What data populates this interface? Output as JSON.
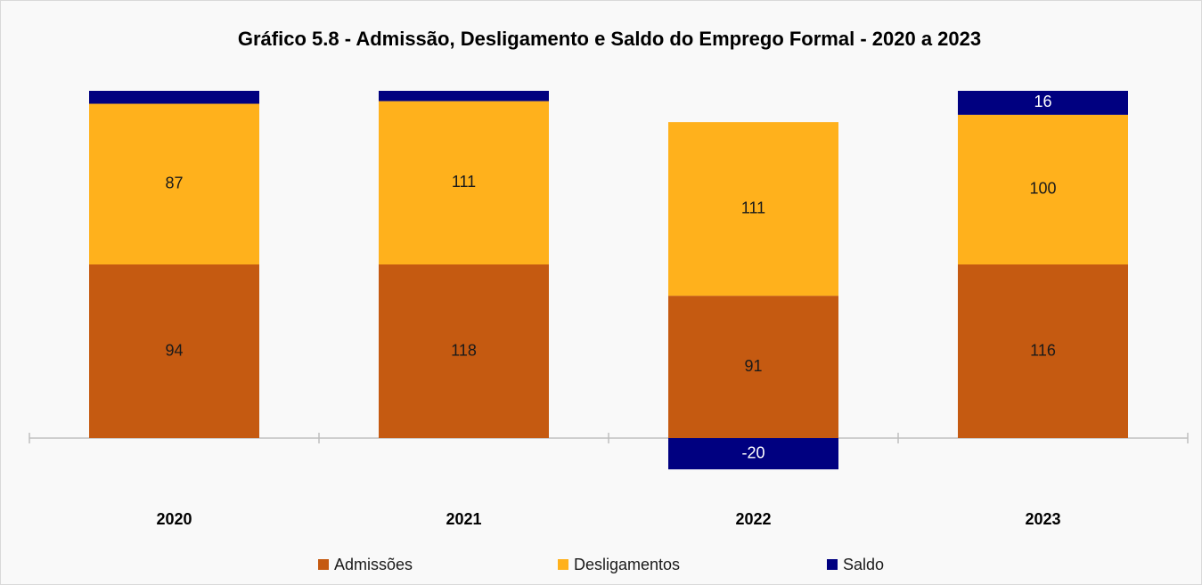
{
  "chart_data": {
    "type": "bar",
    "stacking": "percent",
    "title": "Gráfico 5.8 - Admissão, Desligamento e Saldo do Emprego Formal -  2020 a 2023",
    "categories": [
      "2020",
      "2021",
      "2022",
      "2023"
    ],
    "series": [
      {
        "name": "Admissões",
        "color": "#c55a11",
        "values": [
          94,
          118,
          91,
          116
        ]
      },
      {
        "name": "Desligamentos",
        "color": "#ffb11c",
        "values": [
          87,
          111,
          111,
          100
        ]
      },
      {
        "name": "Saldo",
        "color": "#000080",
        "values": [
          7,
          7,
          -20,
          16
        ]
      }
    ],
    "legend": "bottom"
  }
}
